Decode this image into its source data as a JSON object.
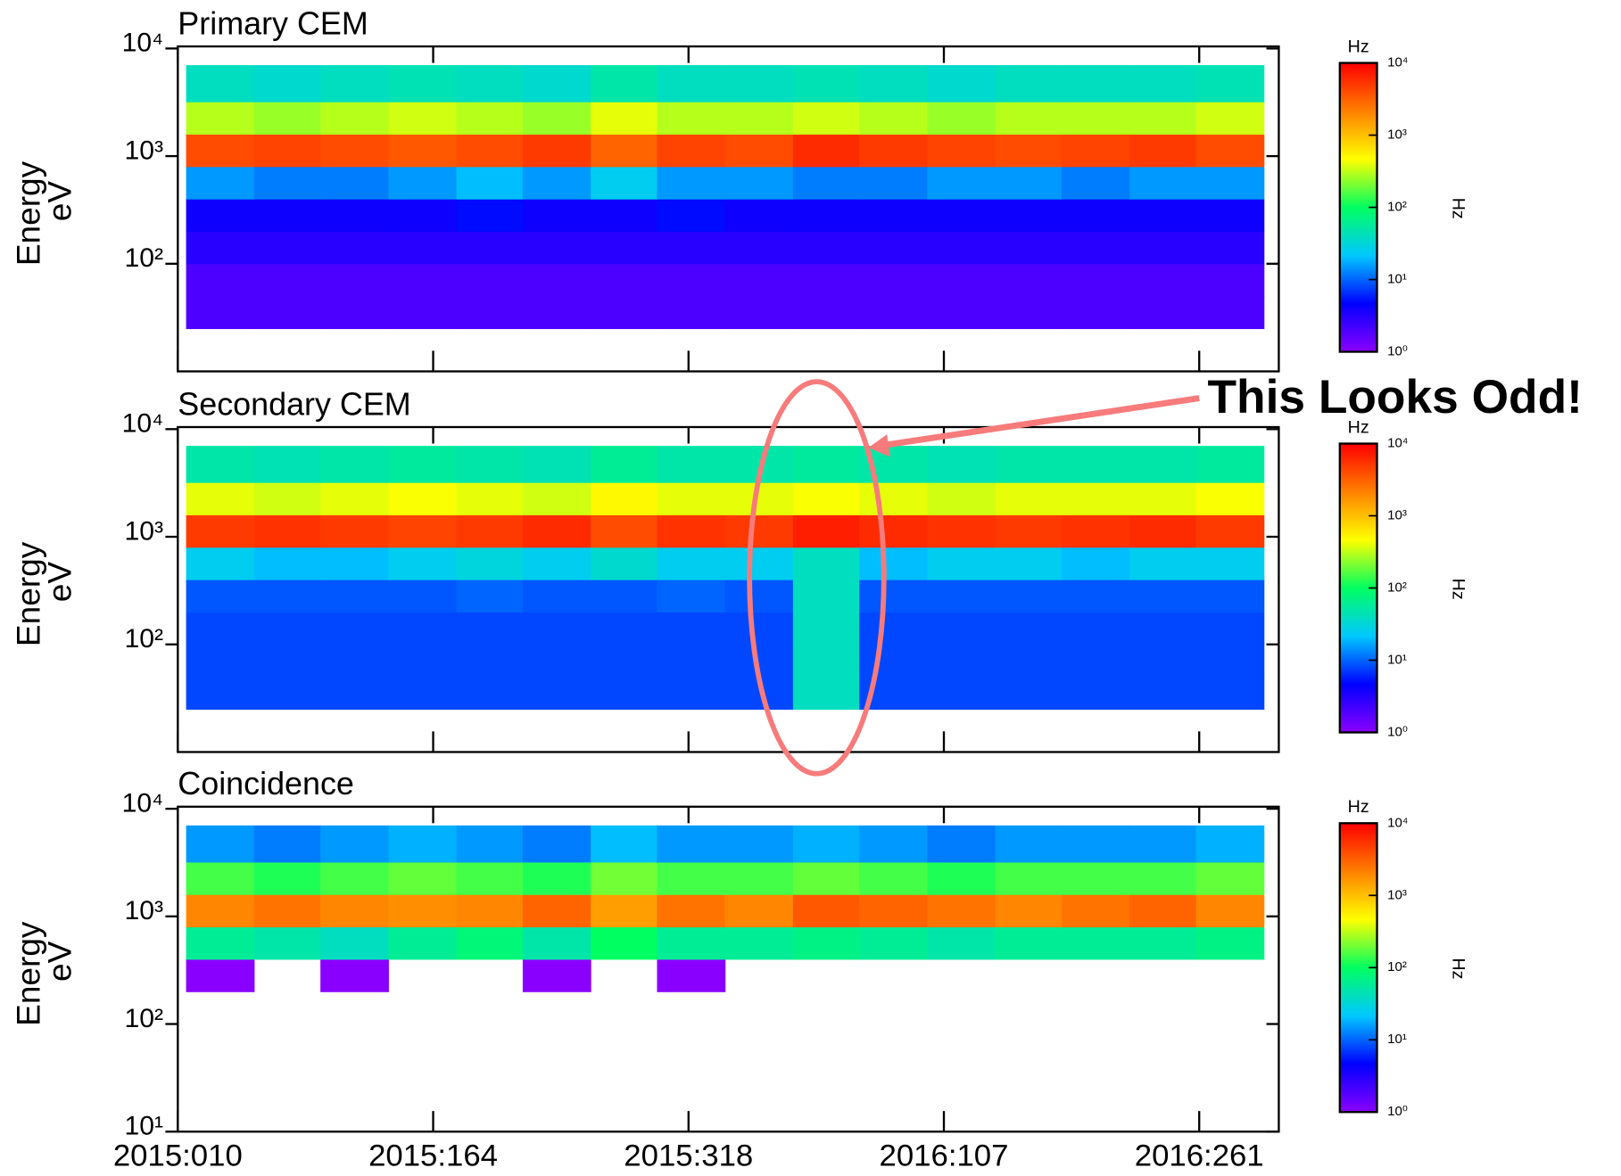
{
  "chart_data": [
    {
      "type": "heatmap",
      "title": "Primary CEM",
      "ylabel": [
        "Energy",
        "eV"
      ],
      "ylog": true,
      "ylim": [
        10,
        10000
      ],
      "yticks": [
        {
          "value": 100,
          "label": "10²"
        },
        {
          "value": 1000,
          "label": "10³"
        },
        {
          "value": 10000,
          "label": "10⁴"
        }
      ],
      "x_edges": [
        14,
        55,
        95,
        136,
        177,
        217,
        258,
        298,
        339,
        380,
        420,
        461,
        502,
        542,
        583,
        623,
        664
      ],
      "y_edges": [
        25,
        50,
        100,
        200,
        400,
        800,
        1600,
        3200,
        7000
      ],
      "values": [
        [
          2,
          2,
          2,
          2,
          2,
          2,
          2,
          2,
          2,
          2,
          2,
          2,
          2,
          2,
          2,
          2
        ],
        [
          2,
          2,
          2,
          2,
          2,
          2,
          2,
          2,
          2,
          2,
          2,
          2,
          2,
          2,
          2,
          2
        ],
        [
          3,
          3,
          3,
          3,
          3,
          3,
          3,
          3,
          3,
          3,
          3,
          3,
          3,
          3,
          3,
          3
        ],
        [
          4,
          4,
          4,
          4,
          5,
          4,
          4,
          5,
          4,
          4,
          4,
          4,
          4,
          4,
          4,
          4
        ],
        [
          15,
          12,
          12,
          15,
          20,
          15,
          25,
          15,
          15,
          12,
          12,
          15,
          15,
          12,
          15,
          15
        ],
        [
          4000,
          4500,
          4000,
          3500,
          4000,
          5000,
          3000,
          4500,
          4000,
          6000,
          5000,
          4500,
          4000,
          4500,
          5000,
          4000
        ],
        [
          300,
          250,
          300,
          350,
          300,
          250,
          400,
          300,
          300,
          350,
          300,
          250,
          300,
          300,
          300,
          350
        ],
        [
          40,
          35,
          40,
          45,
          40,
          35,
          50,
          40,
          40,
          45,
          40,
          35,
          40,
          40,
          40,
          45
        ]
      ],
      "colorbar": {
        "label": "Hz",
        "lim": [
          1,
          10000
        ],
        "ticks": [
          {
            "value": 1,
            "label": "10⁰"
          },
          {
            "value": 10,
            "label": "10¹"
          },
          {
            "value": 100,
            "label": "10²"
          },
          {
            "value": 1000,
            "label": "10³"
          },
          {
            "value": 10000,
            "label": "10⁴"
          }
        ],
        "colormap": [
          "#8a00ff",
          "#0000ff",
          "#00c8ff",
          "#00ff60",
          "#ffff00",
          "#ff8000",
          "#ff0000"
        ]
      }
    },
    {
      "type": "heatmap",
      "title": "Secondary CEM",
      "ylabel": [
        "Energy",
        "eV"
      ],
      "ylog": true,
      "ylim": [
        10,
        10000
      ],
      "yticks": [
        {
          "value": 100,
          "label": "10²"
        },
        {
          "value": 1000,
          "label": "10³"
        },
        {
          "value": 10000,
          "label": "10⁴"
        }
      ],
      "x_edges": [
        14,
        55,
        95,
        136,
        177,
        217,
        258,
        298,
        339,
        380,
        420,
        461,
        502,
        542,
        583,
        623,
        664
      ],
      "y_edges": [
        25,
        50,
        100,
        200,
        400,
        800,
        1600,
        3200,
        7000
      ],
      "values": [
        [
          8,
          8,
          8,
          8,
          8,
          8,
          8,
          8,
          8,
          40,
          8,
          8,
          8,
          8,
          8,
          8
        ],
        [
          8,
          8,
          8,
          8,
          8,
          8,
          8,
          8,
          8,
          40,
          8,
          8,
          8,
          8,
          8,
          8
        ],
        [
          8,
          8,
          8,
          8,
          8,
          8,
          8,
          8,
          8,
          40,
          8,
          8,
          8,
          8,
          8,
          8
        ],
        [
          9,
          9,
          9,
          9,
          10,
          9,
          9,
          10,
          9,
          40,
          9,
          9,
          9,
          9,
          9,
          9
        ],
        [
          25,
          20,
          20,
          25,
          30,
          25,
          35,
          25,
          25,
          40,
          20,
          25,
          25,
          20,
          25,
          25
        ],
        [
          5000,
          5500,
          5000,
          4500,
          5000,
          6000,
          4000,
          5500,
          5000,
          7000,
          6000,
          5500,
          5000,
          5500,
          6000,
          5000
        ],
        [
          400,
          350,
          400,
          450,
          400,
          350,
          500,
          400,
          400,
          450,
          400,
          350,
          400,
          400,
          400,
          450
        ],
        [
          50,
          45,
          50,
          55,
          50,
          45,
          60,
          50,
          50,
          55,
          50,
          45,
          50,
          50,
          50,
          55
        ]
      ],
      "colorbar": {
        "label": "Hz",
        "lim": [
          1,
          10000
        ],
        "ticks": [
          {
            "value": 1,
            "label": "10⁰"
          },
          {
            "value": 10,
            "label": "10¹"
          },
          {
            "value": 100,
            "label": "10²"
          },
          {
            "value": 1000,
            "label": "10³"
          },
          {
            "value": 10000,
            "label": "10⁴"
          }
        ],
        "colormap": [
          "#8a00ff",
          "#0000ff",
          "#00c8ff",
          "#00ff60",
          "#ffff00",
          "#ff8000",
          "#ff0000"
        ]
      },
      "annotation": {
        "text": "This Looks Odd!",
        "color": "#f77b7b"
      }
    },
    {
      "type": "heatmap",
      "title": "Coincidence",
      "ylabel": [
        "Energy",
        "eV"
      ],
      "ylog": true,
      "ylim": [
        10,
        10000
      ],
      "yticks": [
        {
          "value": 10,
          "label": "10¹"
        },
        {
          "value": 100,
          "label": "10²"
        },
        {
          "value": 1000,
          "label": "10³"
        },
        {
          "value": 10000,
          "label": "10⁴"
        }
      ],
      "xlim": [
        9,
        673
      ],
      "xticks": [
        {
          "value": 9,
          "label": "2015:010"
        },
        {
          "value": 163,
          "label": "2015:164"
        },
        {
          "value": 317,
          "label": "2015:318"
        },
        {
          "value": 471,
          "label": "2016:107"
        },
        {
          "value": 625,
          "label": "2016:261"
        }
      ],
      "x_edges": [
        14,
        55,
        95,
        136,
        177,
        217,
        258,
        298,
        339,
        380,
        420,
        461,
        502,
        542,
        583,
        623,
        664
      ],
      "y_edges": [
        25,
        50,
        100,
        200,
        400,
        800,
        1600,
        3200,
        7000
      ],
      "values": [
        [
          null,
          null,
          null,
          null,
          null,
          null,
          null,
          null,
          null,
          null,
          null,
          null,
          null,
          null,
          null,
          null
        ],
        [
          null,
          null,
          null,
          null,
          null,
          null,
          null,
          null,
          null,
          null,
          null,
          null,
          null,
          null,
          null,
          null
        ],
        [
          null,
          null,
          null,
          null,
          null,
          null,
          null,
          null,
          null,
          null,
          null,
          null,
          null,
          null,
          null,
          null
        ],
        [
          1,
          null,
          1,
          null,
          null,
          1,
          null,
          1,
          null,
          null,
          null,
          null,
          null,
          null,
          null,
          null
        ],
        [
          60,
          50,
          40,
          60,
          80,
          50,
          100,
          60,
          60,
          70,
          60,
          50,
          60,
          60,
          60,
          70
        ],
        [
          2000,
          2500,
          2000,
          1800,
          2000,
          3000,
          1500,
          2500,
          2000,
          3500,
          3000,
          2500,
          2000,
          2500,
          3000,
          2000
        ],
        [
          150,
          120,
          150,
          180,
          150,
          120,
          200,
          150,
          150,
          180,
          150,
          120,
          150,
          150,
          150,
          180
        ],
        [
          15,
          12,
          15,
          18,
          15,
          12,
          20,
          15,
          15,
          18,
          15,
          12,
          15,
          15,
          15,
          18
        ]
      ],
      "colorbar": {
        "label": "Hz",
        "lim": [
          1,
          10000
        ],
        "ticks": [
          {
            "value": 1,
            "label": "10⁰"
          },
          {
            "value": 10,
            "label": "10¹"
          },
          {
            "value": 100,
            "label": "10²"
          },
          {
            "value": 1000,
            "label": "10³"
          },
          {
            "value": 10000,
            "label": "10⁴"
          }
        ],
        "colormap": [
          "#8a00ff",
          "#0000ff",
          "#00c8ff",
          "#00ff60",
          "#ffff00",
          "#ff8000",
          "#ff0000"
        ]
      }
    }
  ]
}
